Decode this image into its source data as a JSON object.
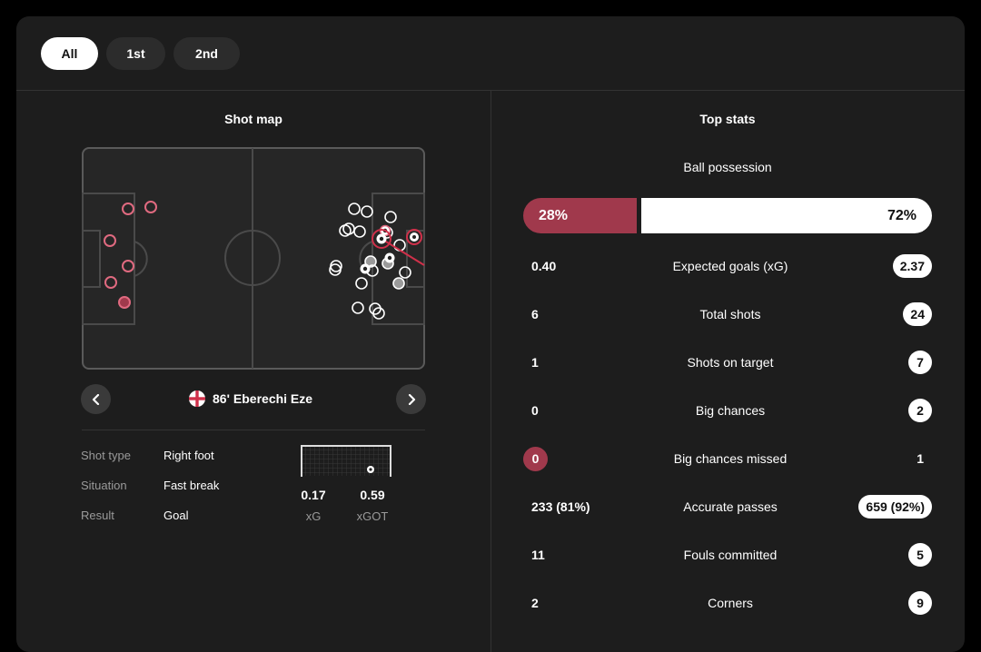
{
  "tabs": [
    {
      "label": "All",
      "active": true
    },
    {
      "label": "1st",
      "active": false
    },
    {
      "label": "2nd",
      "active": false
    }
  ],
  "shot_map": {
    "title": "Shot map",
    "selected_shot": {
      "minute": "86'",
      "player": "Eberechi Eze",
      "details": [
        {
          "label": "Shot type",
          "value": "Right foot"
        },
        {
          "label": "Situation",
          "value": "Fast break"
        },
        {
          "label": "Result",
          "value": "Goal"
        }
      ],
      "xg": "0.17",
      "xg_label": "xG",
      "xgot": "0.59",
      "xgot_label": "xGOT"
    }
  },
  "top_stats": {
    "title": "Top stats",
    "possession": {
      "label": "Ball possession",
      "home": "28%",
      "away": "72%"
    },
    "rows": [
      {
        "name": "Expected goals (xG)",
        "home": "0.40",
        "away": "2.37",
        "highlight": "away"
      },
      {
        "name": "Total shots",
        "home": "6",
        "away": "24",
        "highlight": "away"
      },
      {
        "name": "Shots on target",
        "home": "1",
        "away": "7",
        "highlight": "away"
      },
      {
        "name": "Big chances",
        "home": "0",
        "away": "2",
        "highlight": "away"
      },
      {
        "name": "Big chances missed",
        "home": "0",
        "away": "1",
        "highlight": "home"
      },
      {
        "name": "Accurate passes",
        "home": "233 (81%)",
        "away": "659 (92%)",
        "highlight": "away"
      },
      {
        "name": "Fouls committed",
        "home": "11",
        "away": "5",
        "highlight": "away"
      },
      {
        "name": "Corners",
        "home": "2",
        "away": "9",
        "highlight": "away"
      }
    ]
  },
  "colors": {
    "home_accent": "#a0394c",
    "away_accent": "#ffffff",
    "card_bg": "#1d1d1d",
    "pitch_bg": "#262626"
  },
  "icons": {
    "prev": "chevron-left-icon",
    "next": "chevron-right-icon",
    "flag": "england-flag-icon"
  }
}
